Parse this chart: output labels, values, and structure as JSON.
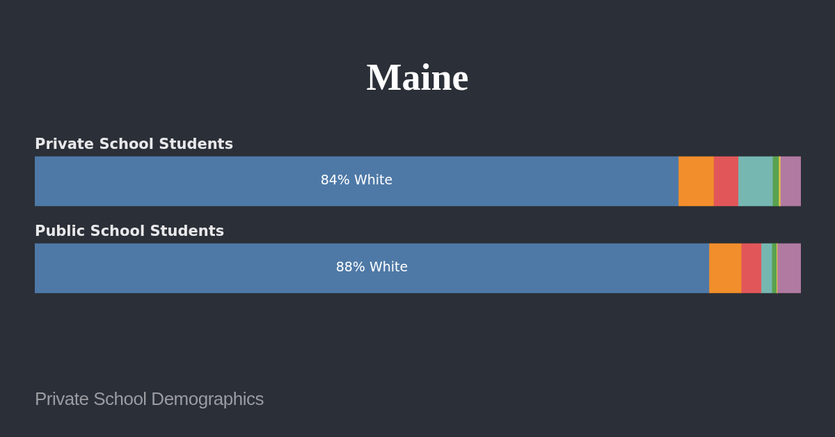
{
  "chart_data": {
    "type": "bar",
    "title": "Maine",
    "orientation": "horizontal",
    "stacked": true,
    "legend": false,
    "xlim": [
      0,
      100
    ],
    "categories": [
      "Private School Students",
      "Public School Students"
    ],
    "series": [
      {
        "color": "#4e79a7",
        "values": [
          84,
          88
        ],
        "value_labels": [
          "84% White",
          "88% White"
        ]
      },
      {
        "color": "#f28e2b",
        "values": [
          4.6,
          4.2
        ]
      },
      {
        "color": "#e15759",
        "values": [
          3.2,
          2.6
        ]
      },
      {
        "color": "#76b7b2",
        "values": [
          4.5,
          1.4
        ]
      },
      {
        "color": "#59a14f",
        "values": [
          0.8,
          0.6
        ]
      },
      {
        "color": "#edc948",
        "values": [
          0.2,
          0.1
        ]
      },
      {
        "color": "#b07aa1",
        "values": [
          2.7,
          3.1
        ]
      }
    ],
    "annotations": [
      "Private School Demographics"
    ]
  }
}
